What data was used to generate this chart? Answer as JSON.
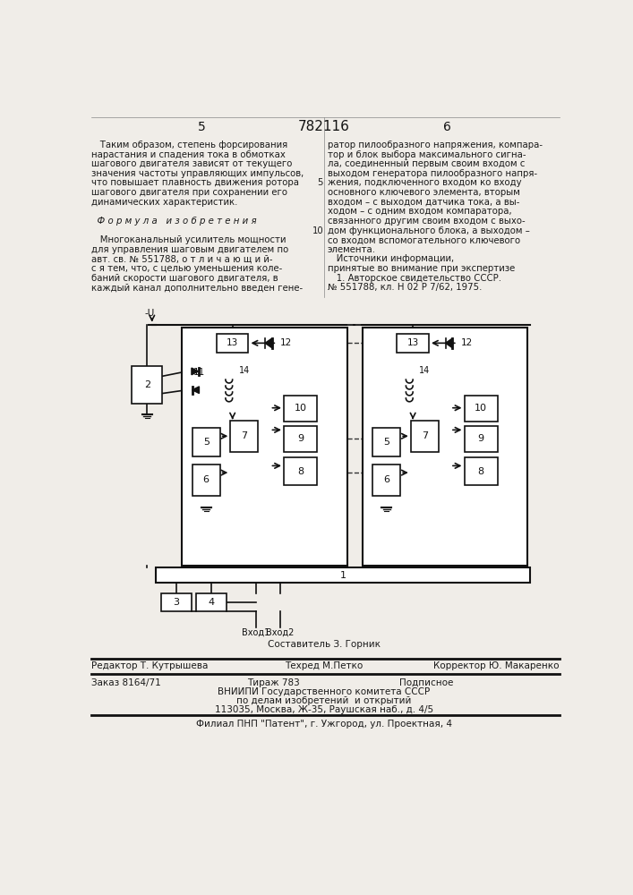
{
  "title": "782116",
  "page_left": "5",
  "page_right": "6",
  "bg_color": "#f0ede8",
  "text_color": "#1a1a1a",
  "text_left_col": [
    "   Таким образом, степень форсирования",
    "нарастания и спадения тока в обмотках",
    "шагового двигателя зависят от текущего",
    "значения частоты управляющих импульсов,",
    "что повышает плавность движения ротора",
    "шагового двигателя при сохранении его",
    "динамических характеристик.",
    "",
    "  Ф о р м у л а   и з о б р е т е н и я",
    "",
    "   Многоканальный усилитель мощности",
    "для управления шаговым двигателем по",
    "авт. св. № 551788, о т л и ч а ю щ и й-",
    "с я тем, что, с целью уменьшения коле-",
    "баний скорости шагового двигателя, в",
    "каждый канал дополнительно введен гене-"
  ],
  "text_right_col": [
    "ратор пилообразного напряжения, компара-",
    "тор и блок выбора максимального сигна-",
    "ла, соединенный первым своим входом с",
    "выходом генератора пилообразного напря-",
    "жения, подключенного входом ко входу",
    "основного ключевого элемента, вторым",
    "входом – с выходом датчика тока, а вы-",
    "ходом – с одним входом компаратора,",
    "связанного другим своим входом с выхо-",
    "дом функционального блока, а выходом –",
    "со входом вспомогательного ключевого",
    "элемента.",
    "   Источники информации,",
    "принятые во внимание при экспертизе",
    "   1. Авторское свидетельство СССР.",
    "№ 551788, кл. Н 02 Р 7/62, 1975."
  ],
  "footer_line1_left": "Редактор Т. Кутрышева",
  "footer_line1_center": "Составитель З. Горник",
  "footer_line1_center2": "Техред М.Петко",
  "footer_line1_right": "Корректор Ю. Макаренко",
  "footer_line2_left": "Заказ 8164/71",
  "footer_line2_center": "Тираж 783",
  "footer_line2_right": "Подписное",
  "footer_line3": "ВНИИПИ Государственного комитета СССР",
  "footer_line4": "по делам изобретений  и открытий",
  "footer_line5": "113035, Москва, Ж-35, Раушская наб., д. 4/5",
  "footer_line6": "Филиал ПНП \"Патент\", г. Ужгород, ул. Проектная, 4"
}
